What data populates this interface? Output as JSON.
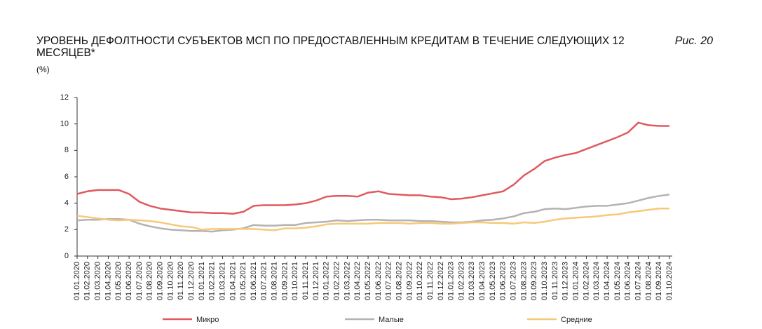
{
  "chart_data": {
    "type": "line",
    "title": "УРОВЕНЬ ДЕФОЛТНОСТИ СУБЪЕКТОВ МСП ПО ПРЕДОСТАВЛЕННЫМ КРЕДИТАМ В ТЕЧЕНИЕ СЛЕДУЮЩИХ 12 МЕСЯЦЕВ*",
    "figure_label": "Рис. 20",
    "unit_label": "(%)",
    "categories": [
      "01.01.2020",
      "01.02.2020",
      "01.03.2020",
      "01.04.2020",
      "01.05.2020",
      "01.06.2020",
      "01.07.2020",
      "01.08.2020",
      "01.09.2020",
      "01.10.2020",
      "01.11.2020",
      "01.12.2020",
      "01.01.2021",
      "01.02.2021",
      "01.03.2021",
      "01.04.2021",
      "01.05.2021",
      "01.06.2021",
      "01.07.2021",
      "01.08.2021",
      "01.09.2021",
      "01.10.2021",
      "01.11.2021",
      "01.12.2021",
      "01.01.2022",
      "01.02.2022",
      "01.03.2022",
      "01.04.2022",
      "01.05.2022",
      "01.06.2022",
      "01.07.2022",
      "01.08.2022",
      "01.09.2022",
      "01.10.2022",
      "01.11.2022",
      "01.12.2022",
      "01.01.2023",
      "01.02.2023",
      "01.03.2023",
      "01.04.2023",
      "01.05.2023",
      "01.06.2023",
      "01.07.2023",
      "01.08.2023",
      "01.09.2023",
      "01.10.2023",
      "01.11.2023",
      "01.12.2023",
      "01.01.2024",
      "01.02.2024",
      "01.03.2024",
      "01.04.2024",
      "01.05.2024",
      "01.06.2024",
      "01.07.2024",
      "01.08.2024",
      "01.09.2024",
      "01.10.2024"
    ],
    "series": [
      {
        "name": "Микро",
        "color": "#e05a5f",
        "values": [
          4.7,
          4.9,
          5.0,
          5.0,
          5.0,
          4.7,
          4.1,
          3.8,
          3.6,
          3.5,
          3.4,
          3.3,
          3.3,
          3.25,
          3.25,
          3.2,
          3.35,
          3.8,
          3.85,
          3.85,
          3.85,
          3.9,
          4.0,
          4.2,
          4.5,
          4.55,
          4.55,
          4.5,
          4.8,
          4.9,
          4.7,
          4.65,
          4.6,
          4.6,
          4.5,
          4.45,
          4.3,
          4.35,
          4.45,
          4.6,
          4.75,
          4.9,
          5.4,
          6.1,
          6.6,
          7.2,
          7.45,
          7.65,
          7.8,
          8.1,
          8.4,
          8.7,
          9.0,
          9.35,
          10.1,
          9.9,
          9.85,
          9.85
        ]
      },
      {
        "name": "Малые",
        "color": "#b3b3b3",
        "values": [
          2.7,
          2.75,
          2.75,
          2.8,
          2.8,
          2.75,
          2.45,
          2.25,
          2.1,
          2.0,
          1.95,
          1.9,
          1.9,
          1.85,
          1.95,
          2.0,
          2.1,
          2.35,
          2.3,
          2.3,
          2.35,
          2.35,
          2.5,
          2.55,
          2.6,
          2.7,
          2.65,
          2.7,
          2.75,
          2.75,
          2.7,
          2.7,
          2.7,
          2.65,
          2.65,
          2.6,
          2.55,
          2.55,
          2.6,
          2.7,
          2.75,
          2.85,
          3.0,
          3.25,
          3.35,
          3.55,
          3.6,
          3.55,
          3.65,
          3.75,
          3.8,
          3.8,
          3.9,
          4.0,
          4.2,
          4.4,
          4.55,
          4.65
        ]
      },
      {
        "name": "Средние",
        "color": "#f7c87a",
        "values": [
          3.05,
          2.95,
          2.85,
          2.75,
          2.7,
          2.75,
          2.7,
          2.65,
          2.55,
          2.4,
          2.25,
          2.2,
          2.0,
          2.05,
          2.05,
          2.05,
          2.05,
          2.05,
          2.0,
          1.95,
          2.1,
          2.1,
          2.15,
          2.25,
          2.4,
          2.45,
          2.45,
          2.45,
          2.45,
          2.5,
          2.5,
          2.5,
          2.45,
          2.5,
          2.5,
          2.45,
          2.45,
          2.5,
          2.55,
          2.55,
          2.5,
          2.5,
          2.45,
          2.55,
          2.5,
          2.6,
          2.75,
          2.85,
          2.9,
          2.95,
          3.0,
          3.1,
          3.15,
          3.3,
          3.4,
          3.5,
          3.6,
          3.6
        ]
      }
    ],
    "ylim": [
      0,
      12
    ],
    "yticks": [
      0,
      2,
      4,
      6,
      8,
      10,
      12
    ],
    "grid": false
  }
}
